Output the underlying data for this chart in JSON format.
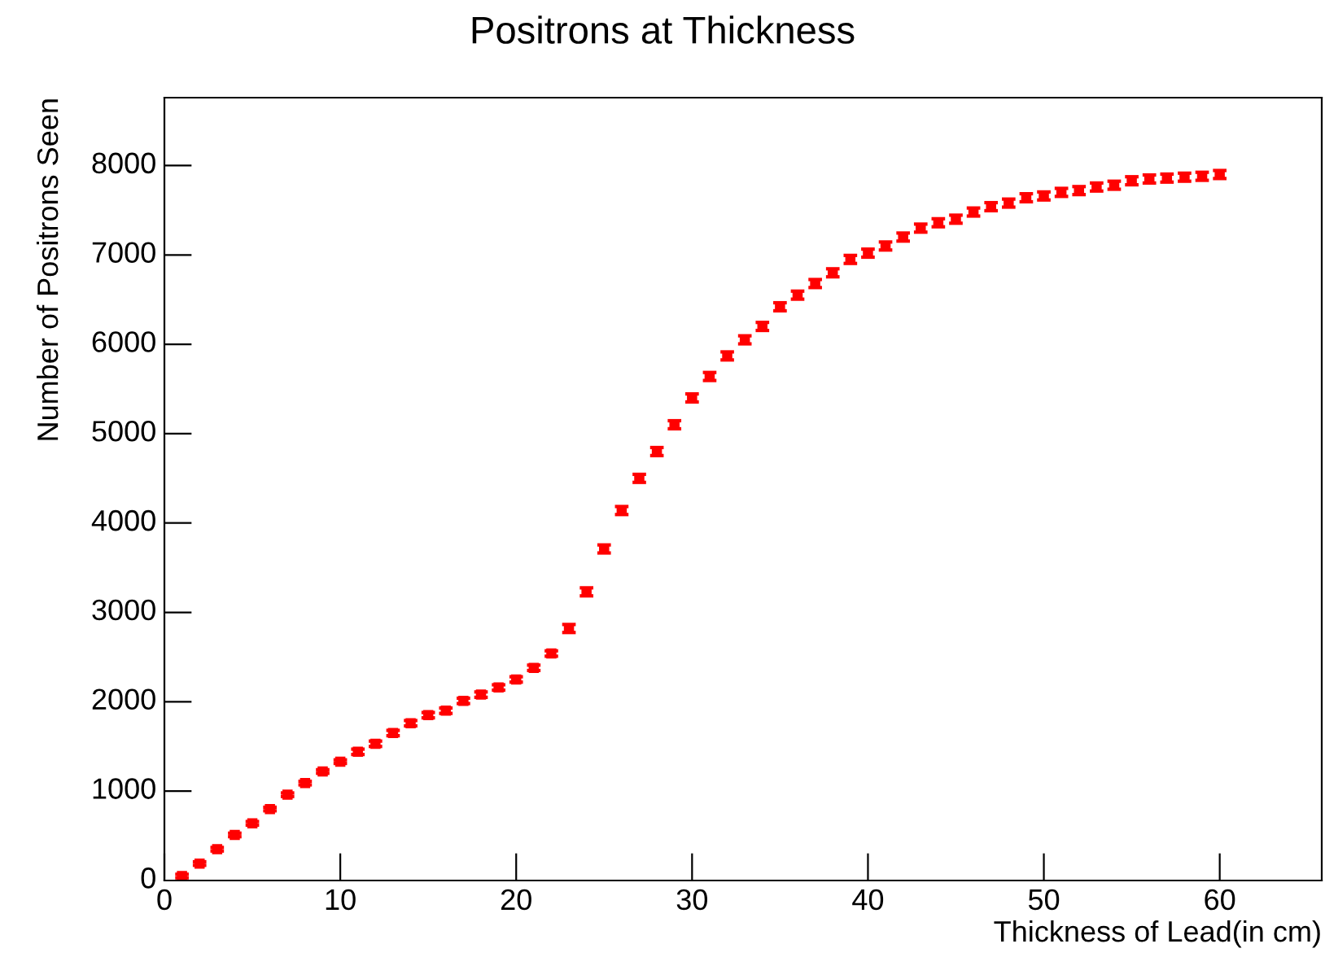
{
  "chart_data": {
    "type": "scatter",
    "title": "Positrons at Thickness",
    "xlabel": "Thickness of Lead(in cm)",
    "ylabel": "Number of Positrons Seen",
    "x": [
      1,
      2,
      3,
      4,
      5,
      6,
      7,
      8,
      9,
      10,
      11,
      12,
      13,
      14,
      15,
      16,
      17,
      18,
      19,
      20,
      21,
      22,
      23,
      24,
      25,
      26,
      27,
      28,
      29,
      30,
      31,
      32,
      33,
      34,
      35,
      36,
      37,
      38,
      39,
      40,
      41,
      42,
      43,
      44,
      45,
      46,
      47,
      48,
      49,
      50,
      51,
      52,
      53,
      54,
      55,
      56,
      57,
      58,
      59,
      60
    ],
    "series": [
      {
        "color": "#ff0000",
        "values": [
          50,
          190,
          350,
          510,
          640,
          800,
          960,
          1090,
          1220,
          1330,
          1440,
          1530,
          1650,
          1760,
          1850,
          1900,
          2010,
          2080,
          2160,
          2250,
          2380,
          2540,
          2820,
          3230,
          3710,
          4140,
          4500,
          4800,
          5100,
          5400,
          5640,
          5870,
          6050,
          6200,
          6420,
          6550,
          6680,
          6800,
          6950,
          7020,
          7100,
          7200,
          7300,
          7360,
          7400,
          7480,
          7540,
          7580,
          7640,
          7660,
          7700,
          7720,
          7760,
          7780,
          7830,
          7850,
          7860,
          7870,
          7880,
          7900
        ],
        "errors": [
          20,
          20,
          20,
          20,
          20,
          20,
          20,
          20,
          20,
          20,
          30,
          30,
          30,
          30,
          30,
          30,
          30,
          30,
          30,
          30,
          30,
          30,
          45,
          45,
          45,
          45,
          45,
          45,
          45,
          45,
          45,
          45,
          45,
          45,
          45,
          45,
          45,
          45,
          45,
          45,
          45,
          45,
          45,
          45,
          45,
          45,
          45,
          45,
          45,
          45,
          45,
          45,
          45,
          45,
          45,
          45,
          45,
          45,
          45,
          45
        ]
      }
    ],
    "marker": "square",
    "grid": false,
    "legend": false,
    "xlim": [
      0,
      65.8
    ],
    "xticks": [
      0,
      10,
      20,
      30,
      40,
      50,
      60
    ],
    "ylim": [
      0,
      8760
    ],
    "yticks": [
      0,
      1000,
      2000,
      3000,
      4000,
      5000,
      6000,
      7000,
      8000
    ]
  }
}
